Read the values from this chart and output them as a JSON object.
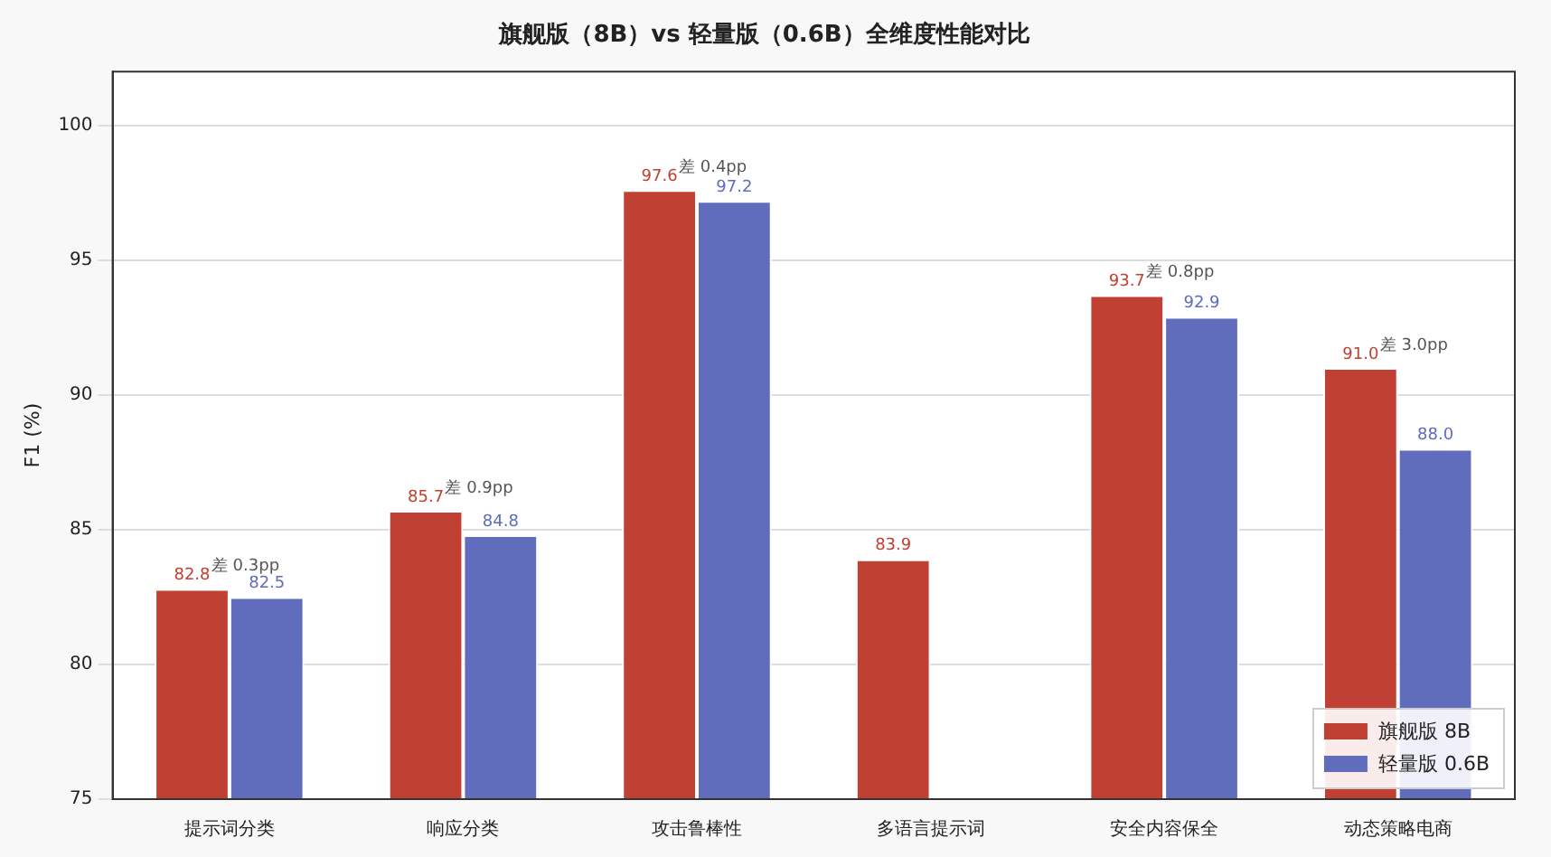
{
  "chart_data": {
    "type": "bar",
    "title": "旗舰版（8B）vs 轻量版（0.6B）全维度性能对比",
    "ylabel": "F1 (%)",
    "categories": [
      "提示词分类",
      "响应分类",
      "攻击鲁棒性",
      "多语言提示词",
      "安全内容保全",
      "动态策略电商"
    ],
    "series": [
      {
        "name": "旗舰版 8B",
        "color": "#c04033",
        "values": [
          82.8,
          85.7,
          97.6,
          83.9,
          93.7,
          91.0
        ],
        "value_labels": [
          "82.8",
          "85.7",
          "97.6",
          "83.9",
          "93.7",
          "91.0"
        ]
      },
      {
        "name": "轻量版 0.6B",
        "color": "#606cbc",
        "values": [
          82.5,
          84.8,
          97.2,
          null,
          92.9,
          88.0
        ],
        "value_labels": [
          "82.5",
          "84.8",
          "97.2",
          null,
          "92.9",
          "88.0"
        ]
      }
    ],
    "annotations": [
      {
        "text": "差 0.3pp",
        "x": "提示词分类",
        "y": 82.8
      },
      {
        "text": "差 0.9pp",
        "x": "响应分类",
        "y": 85.7
      },
      {
        "text": "差 0.4pp",
        "x": "攻击鲁棒性",
        "y": 97.6
      },
      {
        "text": "差 0.8pp",
        "x": "安全内容保全",
        "y": 93.7
      },
      {
        "text": "差 3.0pp",
        "x": "动态策略电商",
        "y": 91.0
      }
    ],
    "ylim": [
      75,
      102
    ],
    "yticks": [
      75,
      80,
      85,
      90,
      95,
      100
    ],
    "grid": "y",
    "legend": "bottom right"
  }
}
